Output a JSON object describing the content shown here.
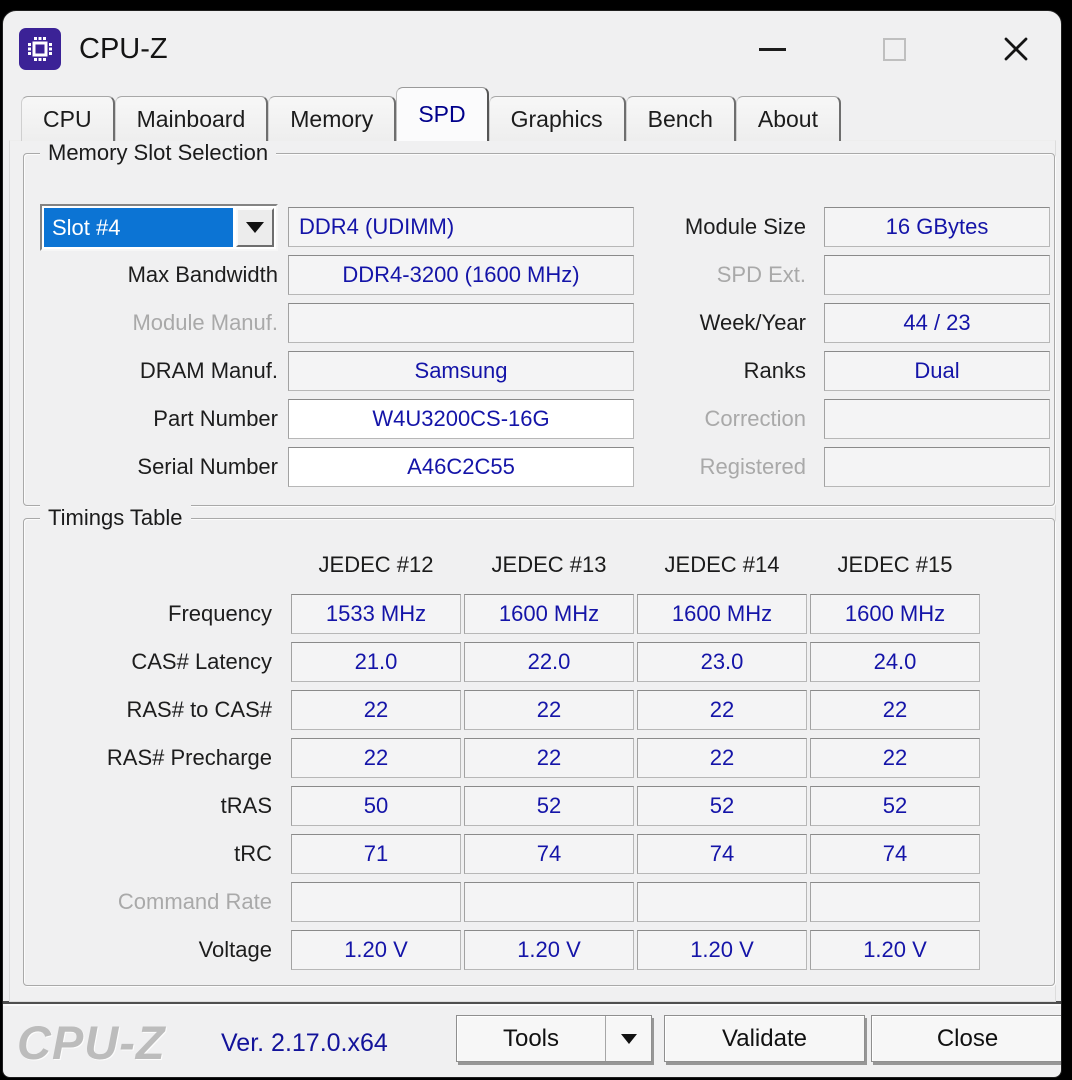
{
  "window": {
    "title": "CPU-Z",
    "controls": {
      "minimize": "minimize",
      "maximize": "maximize",
      "close": "close"
    }
  },
  "tabs": [
    {
      "label": "CPU",
      "active": false
    },
    {
      "label": "Mainboard",
      "active": false
    },
    {
      "label": "Memory",
      "active": false
    },
    {
      "label": "SPD",
      "active": true
    },
    {
      "label": "Graphics",
      "active": false
    },
    {
      "label": "Bench",
      "active": false
    },
    {
      "label": "About",
      "active": false
    }
  ],
  "memory_slot": {
    "group_title": "Memory Slot Selection",
    "slot_selector": {
      "value": "Slot #4"
    },
    "module_type": "DDR4 (UDIMM)",
    "left_rows": [
      {
        "label": "Max Bandwidth",
        "value": "DDR4-3200 (1600 MHz)",
        "disabled": false,
        "white": false
      },
      {
        "label": "Module Manuf.",
        "value": "",
        "disabled": true,
        "white": false
      },
      {
        "label": "DRAM Manuf.",
        "value": "Samsung",
        "disabled": false,
        "white": false
      },
      {
        "label": "Part Number",
        "value": "W4U3200CS-16G",
        "disabled": false,
        "white": true
      },
      {
        "label": "Serial Number",
        "value": "A46C2C55",
        "disabled": false,
        "white": true
      }
    ],
    "right_rows": [
      {
        "label": "Module Size",
        "value": "16 GBytes",
        "disabled": false
      },
      {
        "label": "SPD Ext.",
        "value": "",
        "disabled": true
      },
      {
        "label": "Week/Year",
        "value": "44 / 23",
        "disabled": false
      },
      {
        "label": "Ranks",
        "value": "Dual",
        "disabled": false
      },
      {
        "label": "Correction",
        "value": "",
        "disabled": true
      },
      {
        "label": "Registered",
        "value": "",
        "disabled": true
      }
    ]
  },
  "timings": {
    "group_title": "Timings Table",
    "columns": [
      "JEDEC #12",
      "JEDEC #13",
      "JEDEC #14",
      "JEDEC #15"
    ],
    "rows": [
      {
        "label": "Frequency",
        "values": [
          "1533 MHz",
          "1600 MHz",
          "1600 MHz",
          "1600 MHz"
        ],
        "disabled": false
      },
      {
        "label": "CAS# Latency",
        "values": [
          "21.0",
          "22.0",
          "23.0",
          "24.0"
        ],
        "disabled": false
      },
      {
        "label": "RAS# to CAS#",
        "values": [
          "22",
          "22",
          "22",
          "22"
        ],
        "disabled": false
      },
      {
        "label": "RAS# Precharge",
        "values": [
          "22",
          "22",
          "22",
          "22"
        ],
        "disabled": false
      },
      {
        "label": "tRAS",
        "values": [
          "50",
          "52",
          "52",
          "52"
        ],
        "disabled": false
      },
      {
        "label": "tRC",
        "values": [
          "71",
          "74",
          "74",
          "74"
        ],
        "disabled": false
      },
      {
        "label": "Command Rate",
        "values": [
          "",
          "",
          "",
          ""
        ],
        "disabled": true
      },
      {
        "label": "Voltage",
        "values": [
          "1.20 V",
          "1.20 V",
          "1.20 V",
          "1.20 V"
        ],
        "disabled": false
      }
    ]
  },
  "footer": {
    "logo": "CPU-Z",
    "version": "Ver. 2.17.0.x64",
    "tools_label": "Tools",
    "validate_label": "Validate",
    "close_label": "Close"
  },
  "colors": {
    "selection_blue": "#0c74d4",
    "value_navy": "#1414a8",
    "icon_purple": "#3b2296",
    "dialog_bg": "#f0f0f1"
  }
}
